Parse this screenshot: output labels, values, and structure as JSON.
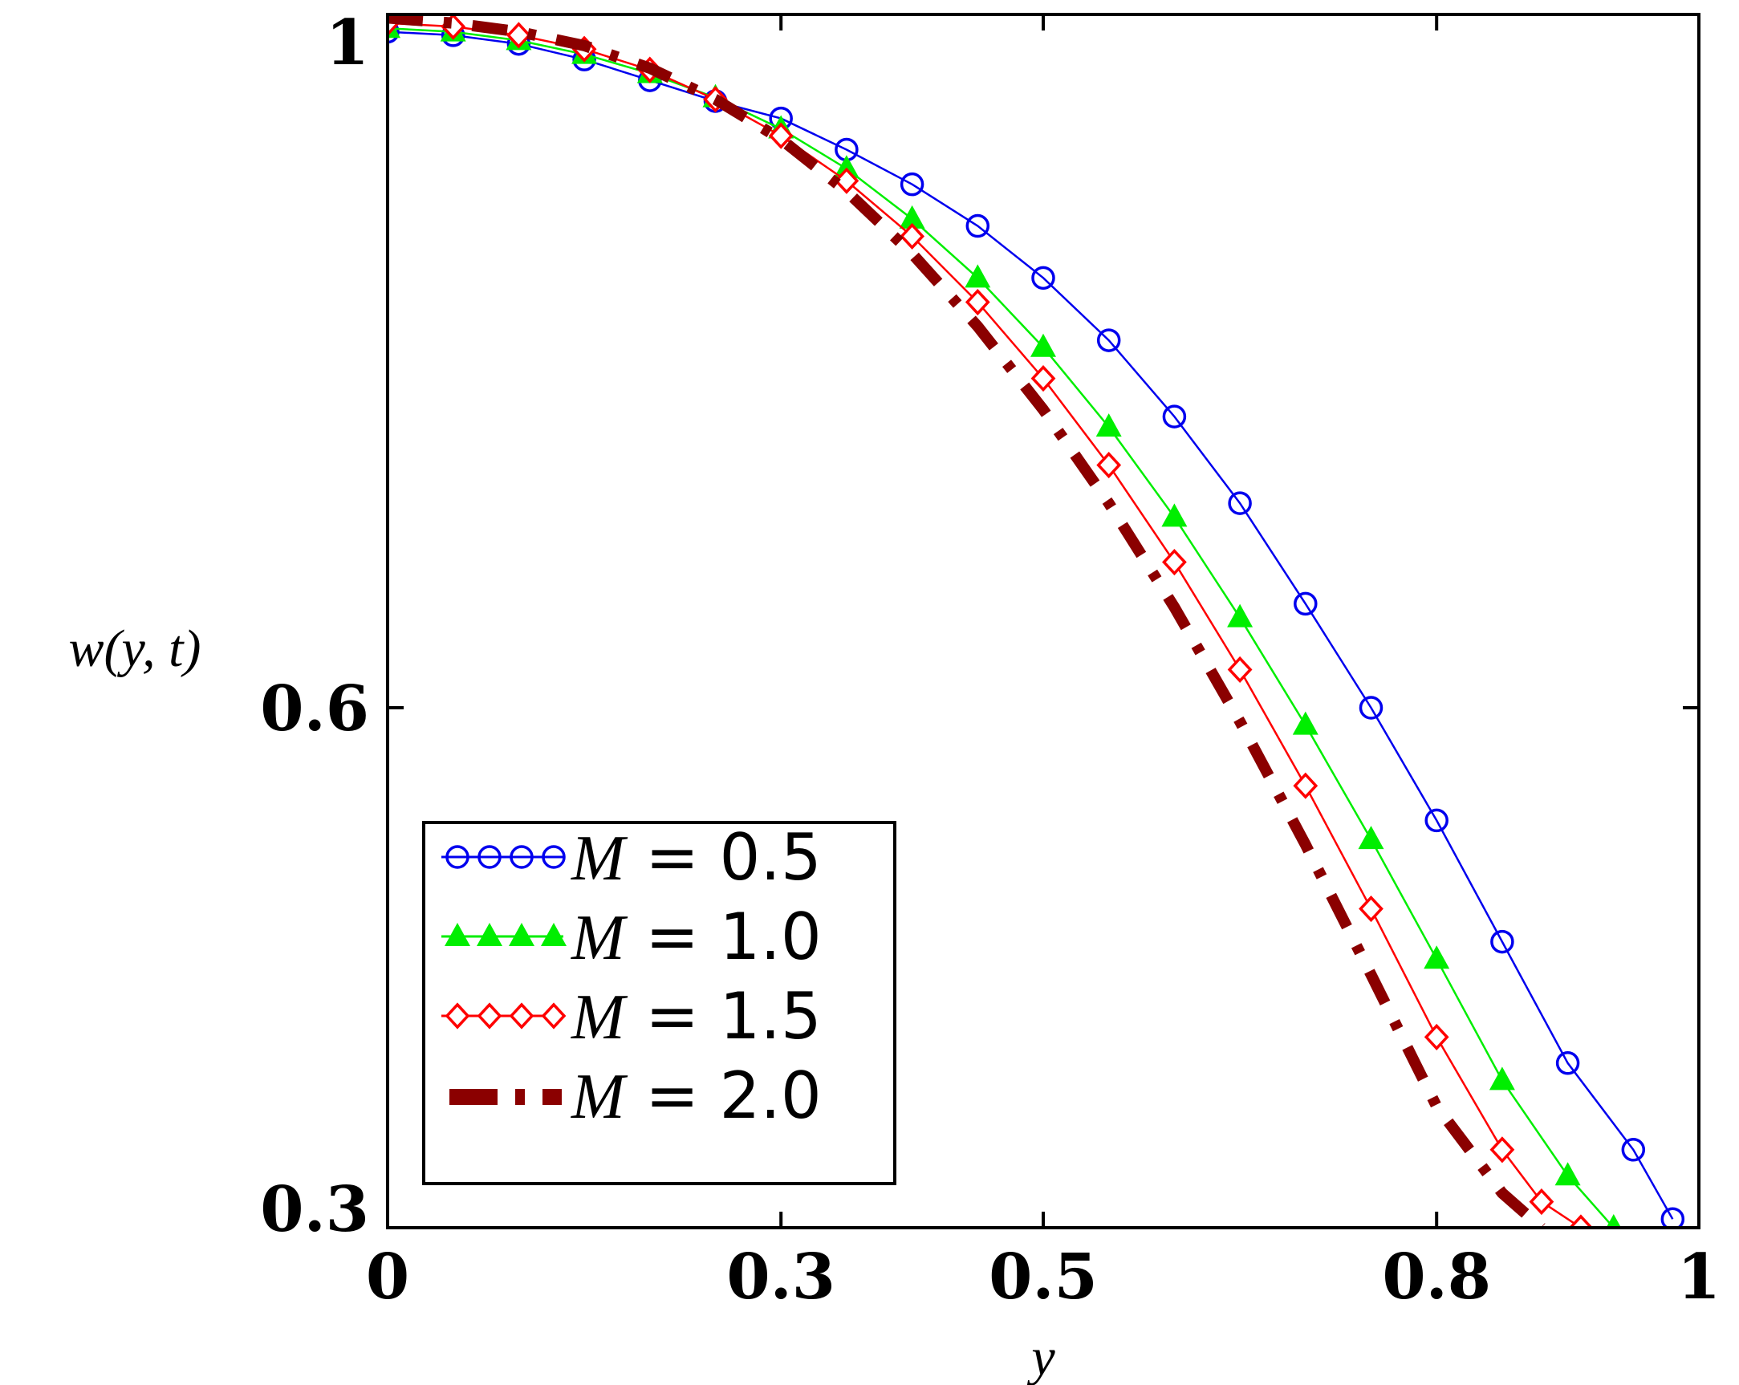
{
  "chart_data": {
    "type": "line",
    "title": "",
    "xlabel": "y",
    "ylabel": "w(y, t)",
    "xlim": [
      0,
      1
    ],
    "ylim": [
      0.3,
      1
    ],
    "x_ticks": [
      0,
      0.3,
      0.5,
      0.8,
      1
    ],
    "x_tick_labels": [
      "0",
      "0.3",
      "0.5",
      "0.8",
      "1"
    ],
    "y_ticks": [
      0.3,
      0.6,
      1
    ],
    "y_tick_labels": [
      "0.3",
      "0.6",
      "1"
    ],
    "legend_position": "bottom-left",
    "series": [
      {
        "name": "M = 0.5",
        "label_var": "M",
        "label_value": "= 0.5",
        "color": "#0000ee",
        "marker": "circle",
        "x": [
          0.0,
          0.05,
          0.1,
          0.15,
          0.2,
          0.25,
          0.3,
          0.35,
          0.4,
          0.45,
          0.5,
          0.55,
          0.6,
          0.65,
          0.7,
          0.75,
          0.8,
          0.85,
          0.9,
          0.95,
          0.98
        ],
        "y": [
          0.99,
          0.988,
          0.983,
          0.974,
          0.962,
          0.95,
          0.94,
          0.922,
          0.902,
          0.878,
          0.848,
          0.812,
          0.768,
          0.718,
          0.66,
          0.6,
          0.535,
          0.465,
          0.395,
          0.345,
          0.305
        ]
      },
      {
        "name": "M = 1.0",
        "label_var": "M",
        "label_value": "= 1.0",
        "color": "#00ee00",
        "marker": "triangle",
        "x": [
          0.0,
          0.05,
          0.1,
          0.15,
          0.2,
          0.25,
          0.3,
          0.35,
          0.4,
          0.45,
          0.5,
          0.55,
          0.6,
          0.65,
          0.7,
          0.75,
          0.8,
          0.85,
          0.9,
          0.935
        ],
        "y": [
          0.992,
          0.99,
          0.985,
          0.977,
          0.966,
          0.952,
          0.934,
          0.911,
          0.882,
          0.848,
          0.808,
          0.762,
          0.71,
          0.652,
          0.59,
          0.524,
          0.455,
          0.385,
          0.33,
          0.3
        ]
      },
      {
        "name": "M = 1.5",
        "label_var": "M",
        "label_value": "= 1.5",
        "color": "#ff0000",
        "marker": "diamond",
        "x": [
          0.0,
          0.05,
          0.1,
          0.15,
          0.2,
          0.25,
          0.3,
          0.35,
          0.4,
          0.45,
          0.5,
          0.55,
          0.6,
          0.65,
          0.7,
          0.75,
          0.8,
          0.85,
          0.88,
          0.91
        ],
        "y": [
          0.995,
          0.993,
          0.988,
          0.98,
          0.968,
          0.951,
          0.93,
          0.904,
          0.872,
          0.834,
          0.79,
          0.74,
          0.684,
          0.622,
          0.555,
          0.484,
          0.41,
          0.345,
          0.315,
          0.3
        ]
      },
      {
        "name": "M = 2.0",
        "label_var": "M",
        "label_value": "= 2.0",
        "color": "#8b0000",
        "marker": "dash-dot",
        "x": [
          0.0,
          0.05,
          0.1,
          0.15,
          0.2,
          0.25,
          0.3,
          0.35,
          0.4,
          0.45,
          0.5,
          0.55,
          0.6,
          0.65,
          0.7,
          0.75,
          0.8,
          0.85,
          0.88
        ],
        "y": [
          0.998,
          0.995,
          0.99,
          0.982,
          0.969,
          0.951,
          0.928,
          0.898,
          0.862,
          0.82,
          0.772,
          0.718,
          0.658,
          0.592,
          0.521,
          0.446,
          0.37,
          0.32,
          0.3
        ]
      }
    ]
  }
}
